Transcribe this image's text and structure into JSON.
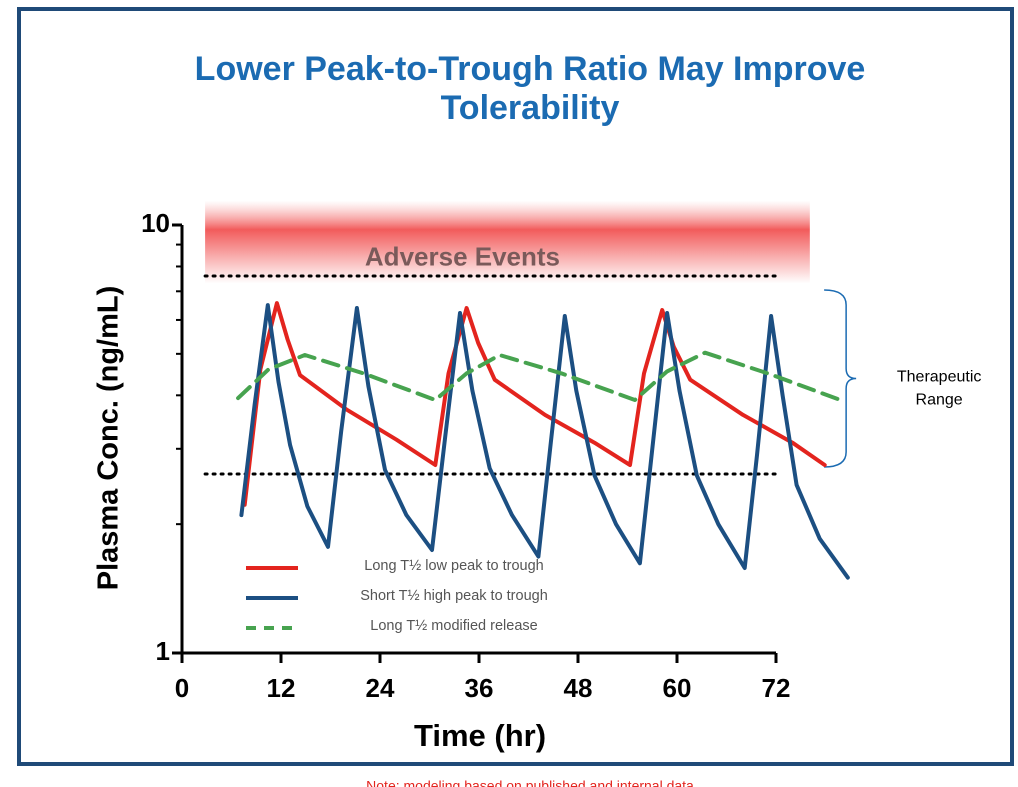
{
  "chart_data": {
    "type": "line",
    "title": [
      "Lower Peak-to-Trough Ratio May Improve",
      "Tolerability"
    ],
    "x_label": "Time (hr)",
    "y_label": "Plasma Conc. (ng/mL)",
    "log_y": true,
    "xlim": [
      0,
      72
    ],
    "xticks": [
      0,
      12,
      24,
      36,
      48,
      60,
      72
    ],
    "ylim": [
      1,
      10
    ],
    "yticks": [
      1,
      10
    ],
    "yminor": [
      2,
      3,
      4,
      5,
      6,
      7,
      8,
      9
    ],
    "legend": "lower left",
    "series": [
      {
        "name": "Long T½ low peak to trough",
        "color": "#e3241e",
        "dash": false,
        "x": [
          7.6,
          9.5,
          11.5,
          12.8,
          14.3,
          20,
          26,
          30.7,
          32.3,
          34.5,
          35.9,
          37.9,
          44,
          50,
          54.3,
          56,
          58.2,
          59.6,
          61.6,
          68,
          74,
          77.9
        ],
        "values": [
          2.22,
          4.6,
          6.57,
          5.4,
          4.46,
          3.7,
          3.15,
          2.75,
          4.5,
          6.4,
          5.3,
          4.35,
          3.6,
          3.1,
          2.75,
          4.5,
          6.33,
          5.2,
          4.35,
          3.6,
          3.1,
          2.75
        ]
      },
      {
        "name": "Short T½ high peak to trough",
        "color": "#1c4f82",
        "dash": false,
        "x": [
          7.2,
          8.8,
          10.4,
          11.7,
          13.1,
          15.2,
          17.7,
          19.3,
          21.2,
          22.6,
          24.6,
          27.2,
          30.3,
          31.9,
          33.7,
          35.2,
          37.3,
          40,
          43.2,
          44.7,
          46.4,
          47.8,
          50,
          52.6,
          55.5,
          57,
          58.8,
          60.3,
          62.4,
          65,
          68.2,
          69.7,
          71.4,
          72.8,
          74.5,
          77.3,
          80.7
        ],
        "values": [
          2.1,
          3.8,
          6.5,
          4.3,
          3.06,
          2.2,
          1.77,
          3.3,
          6.4,
          4.2,
          2.68,
          2.1,
          1.74,
          3.2,
          6.23,
          4.1,
          2.7,
          2.1,
          1.68,
          3.1,
          6.13,
          4.1,
          2.6,
          2.0,
          1.62,
          3.0,
          6.23,
          4.1,
          2.6,
          2.0,
          1.58,
          2.9,
          6.13,
          4.0,
          2.47,
          1.85,
          1.5
        ]
      },
      {
        "name": "Long T½ modified release",
        "color": "#47a34f",
        "dash": true,
        "x": [
          6.8,
          10.5,
          14.9,
          22,
          30.7,
          34.5,
          38.5,
          46,
          54.9,
          58.8,
          63.4,
          71,
          79.8
        ],
        "values": [
          3.94,
          4.6,
          4.97,
          4.5,
          3.9,
          4.5,
          4.97,
          4.5,
          3.9,
          4.55,
          5.03,
          4.5,
          3.9
        ]
      }
    ],
    "band": {
      "label": "Adverse Events",
      "range": [
        7.3,
        11.4
      ],
      "xrange": [
        2.8,
        76.1
      ],
      "color": "#f25b5b"
    },
    "reference_lines": [
      7.6,
      2.62
    ],
    "bracket": {
      "label": [
        "Therapeutic",
        "Range"
      ],
      "range": [
        2.72,
        7.05
      ],
      "x": 80.5
    },
    "footnote": "Note: modeling based on published and internal data"
  }
}
